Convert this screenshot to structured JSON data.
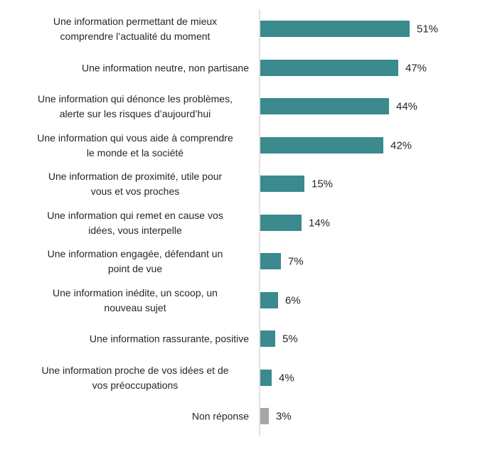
{
  "chart_data": {
    "type": "bar",
    "orientation": "horizontal",
    "title": "",
    "xlabel": "",
    "ylabel": "",
    "xlim": [
      0,
      100
    ],
    "grid": false,
    "legend": null,
    "categories": [
      "Une information permettant de mieux comprendre l’actualité du moment",
      "Une information neutre, non partisane",
      "Une information qui dénonce les problèmes, alerte sur les risques d’aujourd’hui",
      "Une information qui vous aide à comprendre le monde et la société",
      "Une information de proximité, utile pour vous et vos proches",
      "Une information qui remet en cause vos idées, vous interpelle",
      "Une information engagée, défendant un point de vue",
      "Une information inédite, un scoop, un nouveau sujet",
      "Une information rassurante, positive",
      "Une information proche de vos idées et de vos préoccupations",
      "Non réponse"
    ],
    "values": [
      51,
      47,
      44,
      42,
      15,
      14,
      7,
      6,
      5,
      4,
      3
    ],
    "unit": "%"
  },
  "colors": {
    "bar": "#3a8a8e",
    "non_response_bar": "#a6a6a6",
    "axis": "#e3e3e3",
    "text": "#262626"
  },
  "rows": [
    {
      "line1": "Une information permettant de mieux",
      "line2": "comprendre l’actualité du moment",
      "value": 51,
      "value_label": "51%",
      "kind": "main"
    },
    {
      "line1": "Une information neutre, non partisane",
      "line2": "",
      "value": 47,
      "value_label": "47%",
      "kind": "main"
    },
    {
      "line1": "Une information qui dénonce les problèmes,",
      "line2": "alerte sur les risques d’aujourd’hui",
      "value": 44,
      "value_label": "44%",
      "kind": "main"
    },
    {
      "line1": "Une information qui vous aide à comprendre",
      "line2": "le monde et la société",
      "value": 42,
      "value_label": "42%",
      "kind": "main"
    },
    {
      "line1": "Une information de proximité, utile pour",
      "line2": "vous et vos proches",
      "value": 15,
      "value_label": "15%",
      "kind": "main"
    },
    {
      "line1": "Une information qui remet en cause vos",
      "line2": "idées, vous interpelle",
      "value": 14,
      "value_label": "14%",
      "kind": "main"
    },
    {
      "line1": "Une information engagée, défendant un",
      "line2": "point de vue",
      "value": 7,
      "value_label": "7%",
      "kind": "main"
    },
    {
      "line1": "Une information inédite, un scoop, un",
      "line2": "nouveau sujet",
      "value": 6,
      "value_label": "6%",
      "kind": "main"
    },
    {
      "line1": "Une information rassurante, positive",
      "line2": "",
      "value": 5,
      "value_label": "5%",
      "kind": "main"
    },
    {
      "line1": "Une information proche de vos idées et de",
      "line2": "vos préoccupations",
      "value": 4,
      "value_label": "4%",
      "kind": "main"
    },
    {
      "line1": "Non réponse",
      "line2": "",
      "value": 3,
      "value_label": "3%",
      "kind": "non_response"
    }
  ]
}
